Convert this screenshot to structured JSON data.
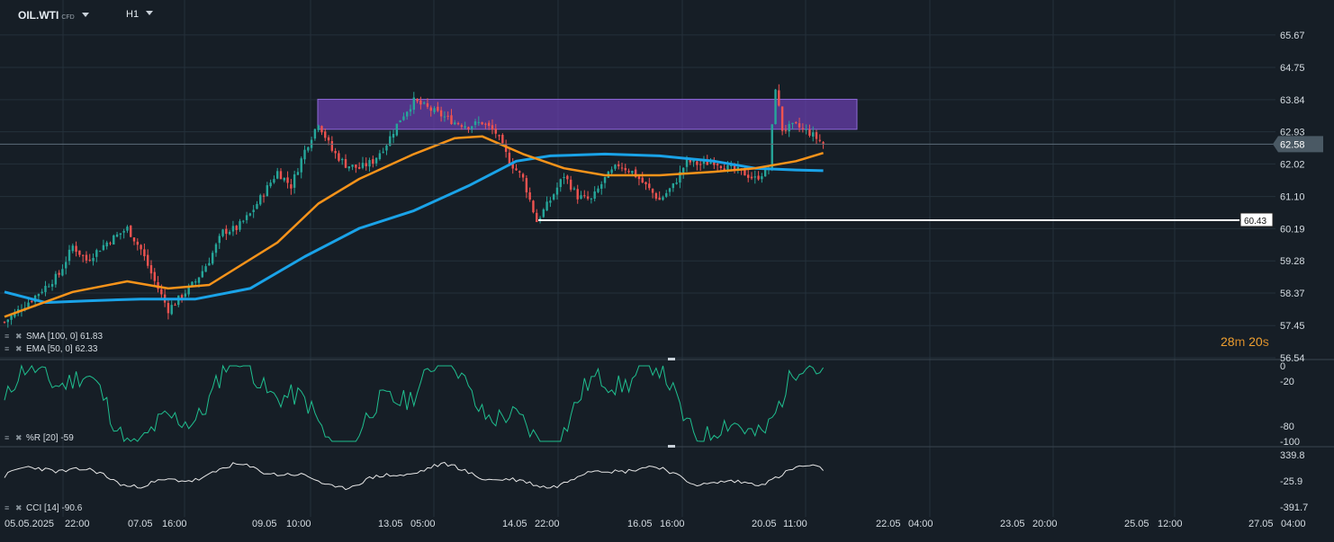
{
  "header": {
    "symbol": "OIL.WTI",
    "symbol_type": "CFD",
    "timeframe": "H1"
  },
  "price_axis": {
    "labels": [
      "65.67",
      "64.75",
      "63.84",
      "62.93",
      "62.02",
      "61.10",
      "60.19",
      "59.28",
      "58.37",
      "57.45",
      "56.54"
    ]
  },
  "current_price": "62.58",
  "level_label": "60.43",
  "countdown": {
    "minutes": "28",
    "m": "m",
    "seconds": "20",
    "s": "s"
  },
  "legends": {
    "sma": "SMA [100, 0] 61.83",
    "ema": "EMA [50, 0] 62.33",
    "wr": "%R [20] -59",
    "cci": "CCI [14] -90.6"
  },
  "wr_axis": [
    "0",
    "-20",
    "-80",
    "-100"
  ],
  "cci_axis": [
    "339.8",
    "-25.9",
    "-391.7"
  ],
  "time_axis": [
    "05.05.2025",
    "22:00",
    "07.05",
    "16:00",
    "09.05",
    "10:00",
    "13.05",
    "05:00",
    "14.05",
    "22:00",
    "16.05",
    "16:00",
    "20.05",
    "11:00",
    "22.05",
    "04:00",
    "23.05",
    "20:00",
    "25.05",
    "12:00",
    "27.05",
    "04:00"
  ],
  "colors": {
    "background": "#161e26",
    "grid": "#24303b",
    "bull": "#26a69a",
    "bear": "#ef5350",
    "ema": "#f7931a",
    "sma": "#1aa3e8",
    "zone": "#6a3fb0",
    "indicator": "#1fbf8f",
    "cci": "#e8e8e8"
  },
  "chart_data": {
    "type": "candlestick",
    "instrument": "OIL.WTI",
    "timeframe": "H1",
    "y_range": [
      56.54,
      66.2
    ],
    "ticks": [
      65.67,
      64.75,
      63.84,
      62.93,
      62.02,
      61.1,
      60.19,
      59.28,
      58.37,
      57.45,
      56.54
    ],
    "close_path": [
      [
        0,
        57.55
      ],
      [
        8,
        58.2
      ],
      [
        16,
        58.9
      ],
      [
        20,
        59.7
      ],
      [
        24,
        59.3
      ],
      [
        30,
        59.8
      ],
      [
        36,
        60.2
      ],
      [
        40,
        59.6
      ],
      [
        44,
        58.7
      ],
      [
        48,
        57.9
      ],
      [
        52,
        58.3
      ],
      [
        56,
        58.7
      ],
      [
        60,
        59.3
      ],
      [
        64,
        60.1
      ],
      [
        68,
        60.2
      ],
      [
        72,
        60.6
      ],
      [
        76,
        61.2
      ],
      [
        80,
        61.8
      ],
      [
        84,
        61.4
      ],
      [
        88,
        62.4
      ],
      [
        92,
        63.2
      ],
      [
        96,
        62.4
      ],
      [
        100,
        62.0
      ],
      [
        104,
        61.9
      ],
      [
        108,
        62.1
      ],
      [
        112,
        62.6
      ],
      [
        116,
        63.3
      ],
      [
        120,
        63.8
      ],
      [
        124,
        63.6
      ],
      [
        128,
        63.4
      ],
      [
        132,
        63.2
      ],
      [
        136,
        63.1
      ],
      [
        140,
        63.2
      ],
      [
        144,
        62.9
      ],
      [
        148,
        62.1
      ],
      [
        152,
        61.6
      ],
      [
        156,
        60.4
      ],
      [
        160,
        61.0
      ],
      [
        164,
        61.7
      ],
      [
        168,
        61.1
      ],
      [
        172,
        61.0
      ],
      [
        176,
        61.6
      ],
      [
        180,
        62.0
      ],
      [
        184,
        61.8
      ],
      [
        188,
        61.4
      ],
      [
        192,
        61.0
      ],
      [
        196,
        61.4
      ],
      [
        200,
        62.1
      ],
      [
        204,
        62.0
      ],
      [
        208,
        62.1
      ],
      [
        212,
        61.9
      ],
      [
        216,
        61.8
      ],
      [
        220,
        61.6
      ],
      [
        224,
        61.9
      ],
      [
        226,
        64.2
      ],
      [
        228,
        63.0
      ],
      [
        232,
        63.1
      ],
      [
        236,
        62.9
      ],
      [
        240,
        62.6
      ]
    ],
    "close_path_note": "",
    "ema50": {
      "name": "EMA [50, 0]",
      "last": 62.33,
      "values": [
        [
          0,
          57.7
        ],
        [
          20,
          58.4
        ],
        [
          36,
          58.7
        ],
        [
          48,
          58.5
        ],
        [
          60,
          58.6
        ],
        [
          80,
          59.8
        ],
        [
          92,
          60.9
        ],
        [
          104,
          61.6
        ],
        [
          120,
          62.3
        ],
        [
          132,
          62.75
        ],
        [
          140,
          62.8
        ],
        [
          152,
          62.3
        ],
        [
          164,
          61.9
        ],
        [
          176,
          61.7
        ],
        [
          192,
          61.7
        ],
        [
          208,
          61.8
        ],
        [
          220,
          61.9
        ],
        [
          232,
          62.1
        ],
        [
          240,
          62.33
        ]
      ]
    },
    "sma100": {
      "name": "SMA [100, 0]",
      "last": 61.83,
      "values": [
        [
          0,
          58.4
        ],
        [
          12,
          58.1
        ],
        [
          24,
          58.15
        ],
        [
          40,
          58.2
        ],
        [
          56,
          58.2
        ],
        [
          72,
          58.5
        ],
        [
          88,
          59.4
        ],
        [
          104,
          60.2
        ],
        [
          120,
          60.7
        ],
        [
          136,
          61.4
        ],
        [
          150,
          62.1
        ],
        [
          160,
          62.25
        ],
        [
          176,
          62.3
        ],
        [
          192,
          62.25
        ],
        [
          208,
          62.1
        ],
        [
          220,
          61.9
        ],
        [
          232,
          61.85
        ],
        [
          240,
          61.83
        ]
      ]
    },
    "resistance_zone": {
      "low": 63.0,
      "high": 63.85
    },
    "support_level": 60.43,
    "wr": {
      "name": "%R [20]",
      "last": -59,
      "range": [
        -100,
        0
      ]
    },
    "cci": {
      "name": "CCI [14]",
      "last": -90.6,
      "range": [
        -391.7,
        339.8
      ]
    }
  }
}
